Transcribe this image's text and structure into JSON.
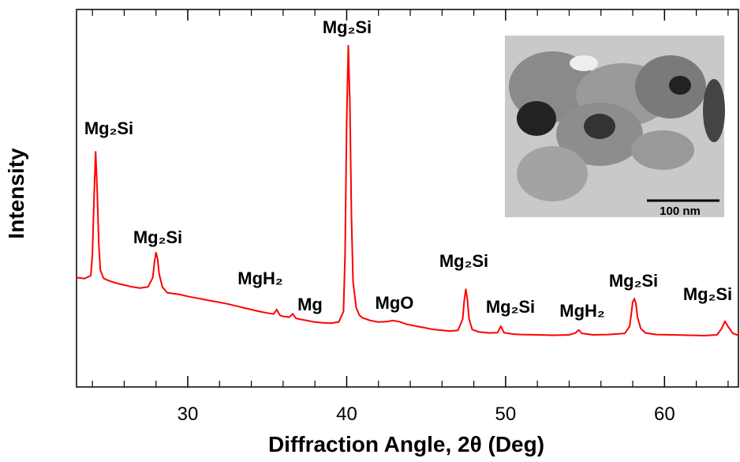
{
  "chart_data": {
    "type": "line",
    "x_label": "Diffraction Angle, 2θ (Deg)",
    "y_label": "Intensity",
    "color": "#ff0000",
    "xlim": [
      23,
      64.7
    ],
    "ylim": [
      0,
      100
    ],
    "xticks": [
      30,
      40,
      50,
      60
    ],
    "x_minor_ticks": [
      24,
      26,
      28,
      32,
      34,
      36,
      38,
      42,
      44,
      46,
      48,
      52,
      54,
      56,
      58,
      62,
      64
    ],
    "x": [
      23.0,
      23.5,
      23.9,
      24.0,
      24.1,
      24.2,
      24.3,
      24.4,
      24.5,
      24.7,
      25.0,
      25.5,
      26.0,
      26.5,
      27.0,
      27.5,
      27.8,
      27.9,
      28.0,
      28.1,
      28.2,
      28.4,
      28.7,
      29.0,
      29.5,
      30.0,
      30.5,
      31.0,
      31.5,
      32.0,
      32.5,
      33.0,
      33.5,
      34.0,
      34.5,
      35.0,
      35.4,
      35.6,
      35.8,
      36.0,
      36.4,
      36.6,
      36.8,
      37.0,
      37.5,
      38.0,
      38.5,
      39.0,
      39.5,
      39.8,
      39.9,
      40.0,
      40.1,
      40.2,
      40.3,
      40.4,
      40.6,
      40.8,
      41.0,
      41.5,
      42.0,
      42.5,
      42.9,
      43.3,
      43.8,
      44.5,
      45.0,
      45.5,
      46.0,
      46.5,
      47.0,
      47.3,
      47.4,
      47.5,
      47.6,
      47.7,
      47.9,
      48.3,
      49.0,
      49.5,
      49.7,
      49.9,
      50.5,
      51.0,
      52.0,
      53.0,
      54.0,
      54.4,
      54.6,
      54.8,
      55.5,
      56.5,
      57.5,
      57.8,
      57.9,
      58.0,
      58.1,
      58.2,
      58.3,
      58.5,
      58.8,
      59.5,
      60.5,
      61.5,
      62.5,
      63.3,
      63.6,
      63.8,
      64.0,
      64.3,
      64.7
    ],
    "values": [
      29.0,
      28.7,
      29.5,
      35,
      50,
      62.3,
      52,
      38,
      31,
      28.8,
      28.2,
      27.5,
      27.0,
      26.5,
      26.2,
      26.5,
      29,
      33,
      35.6,
      34,
      30,
      26.5,
      25,
      24.8,
      24.5,
      24.0,
      23.6,
      23.2,
      22.8,
      22.4,
      22.0,
      21.5,
      21.0,
      20.5,
      20.0,
      19.6,
      19.3,
      20.5,
      19.0,
      18.7,
      18.5,
      19.4,
      18.2,
      18.0,
      17.6,
      17.2,
      17.0,
      16.9,
      17.2,
      20,
      35,
      70,
      90.4,
      75,
      45,
      28,
      21,
      19,
      18.3,
      17.6,
      17.2,
      17.3,
      17.6,
      17.3,
      16.6,
      16.0,
      15.6,
      15.2,
      15.0,
      14.8,
      15.0,
      18,
      23,
      25.9,
      23,
      18,
      15.2,
      14.6,
      14.3,
      14.4,
      16.1,
      14.4,
      14.0,
      13.9,
      13.8,
      13.7,
      13.8,
      14.3,
      15.1,
      14.2,
      13.8,
      13.9,
      14.2,
      16,
      19,
      22.5,
      23.4,
      22,
      18.5,
      15.5,
      14.3,
      13.9,
      13.8,
      13.7,
      13.6,
      13.8,
      15.5,
      17.4,
      16,
      14.2,
      13.6
    ],
    "annotations": [
      "Mg₂Si",
      "Mg₂Si",
      "MgH₂",
      "Mg",
      "Mg₂Si",
      "MgO",
      "Mg₂Si",
      "Mg₂Si",
      "MgH₂",
      "Mg₂Si",
      "Mg₂Si"
    ],
    "inset_scale_label": "100 nm"
  }
}
